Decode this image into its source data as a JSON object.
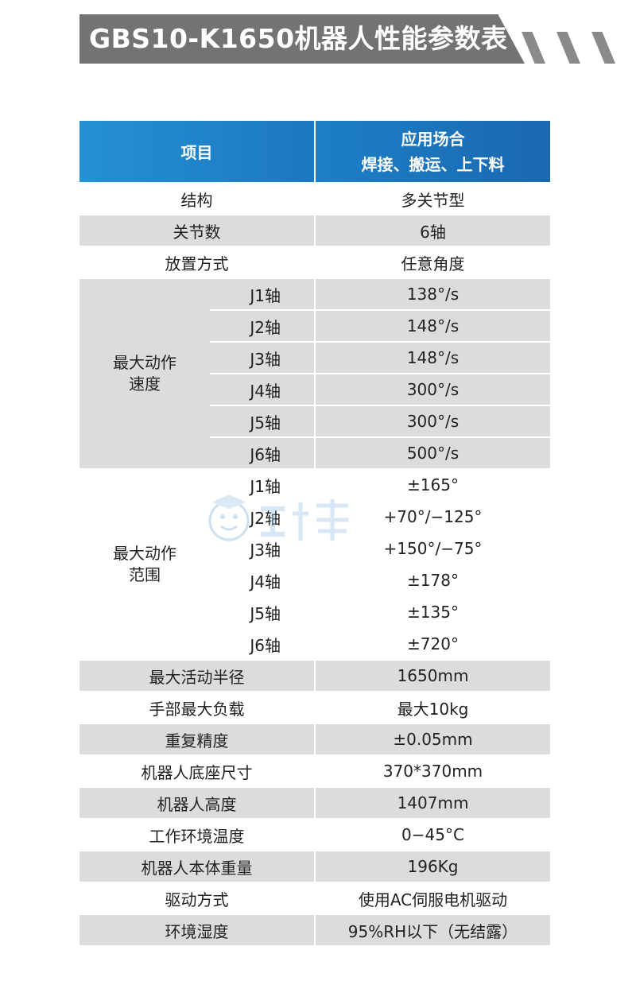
{
  "title": "GBS10-K1650机器人性能参数表",
  "table": {
    "header": {
      "item": "项目",
      "application_line1": "应用场合",
      "application_line2": "焊接、搬运、上下料"
    },
    "simple_rows_top": [
      {
        "label": "结构",
        "value": "多关节型"
      },
      {
        "label": "关节数",
        "value": "6轴"
      },
      {
        "label": "放置方式",
        "value": "任意角度"
      }
    ],
    "speed": {
      "label_line1": "最大动作",
      "label_line2": "速度",
      "rows": [
        {
          "axis": "J1轴",
          "value": "138°/s"
        },
        {
          "axis": "J2轴",
          "value": "148°/s"
        },
        {
          "axis": "J3轴",
          "value": "148°/s"
        },
        {
          "axis": "J4轴",
          "value": "300°/s"
        },
        {
          "axis": "J5轴",
          "value": "300°/s"
        },
        {
          "axis": "J6轴",
          "value": "500°/s"
        }
      ]
    },
    "range": {
      "label_line1": "最大动作",
      "label_line2": "范围",
      "rows": [
        {
          "axis": "J1轴",
          "value": "±165°"
        },
        {
          "axis": "J2轴",
          "value": "+70°/−125°"
        },
        {
          "axis": "J3轴",
          "value": "+150°/−75°"
        },
        {
          "axis": "J4轴",
          "value": "±178°"
        },
        {
          "axis": "J5轴",
          "value": "±135°"
        },
        {
          "axis": "J6轴",
          "value": "±720°"
        }
      ]
    },
    "simple_rows_bottom": [
      {
        "label": "最大活动半径",
        "value": "1650mm"
      },
      {
        "label": "手部最大负载",
        "value": "最大10kg"
      },
      {
        "label": "重复精度",
        "value": "±0.05mm"
      },
      {
        "label": "机器人底座尺寸",
        "value": "370*370mm"
      },
      {
        "label": "机器人高度",
        "value": "1407mm"
      },
      {
        "label": "工作环境温度",
        "value": "0−45°C"
      },
      {
        "label": "机器人本体重量",
        "value": "196Kg"
      },
      {
        "label": "驱动方式",
        "value": "使用AC伺服电机驱动"
      },
      {
        "label": "环境湿度",
        "value": "95%RH以下（无结露）"
      }
    ]
  },
  "colors": {
    "banner": "#737373",
    "header_blue": "#1a6fb5",
    "row_gray": "#dcdcdd"
  }
}
